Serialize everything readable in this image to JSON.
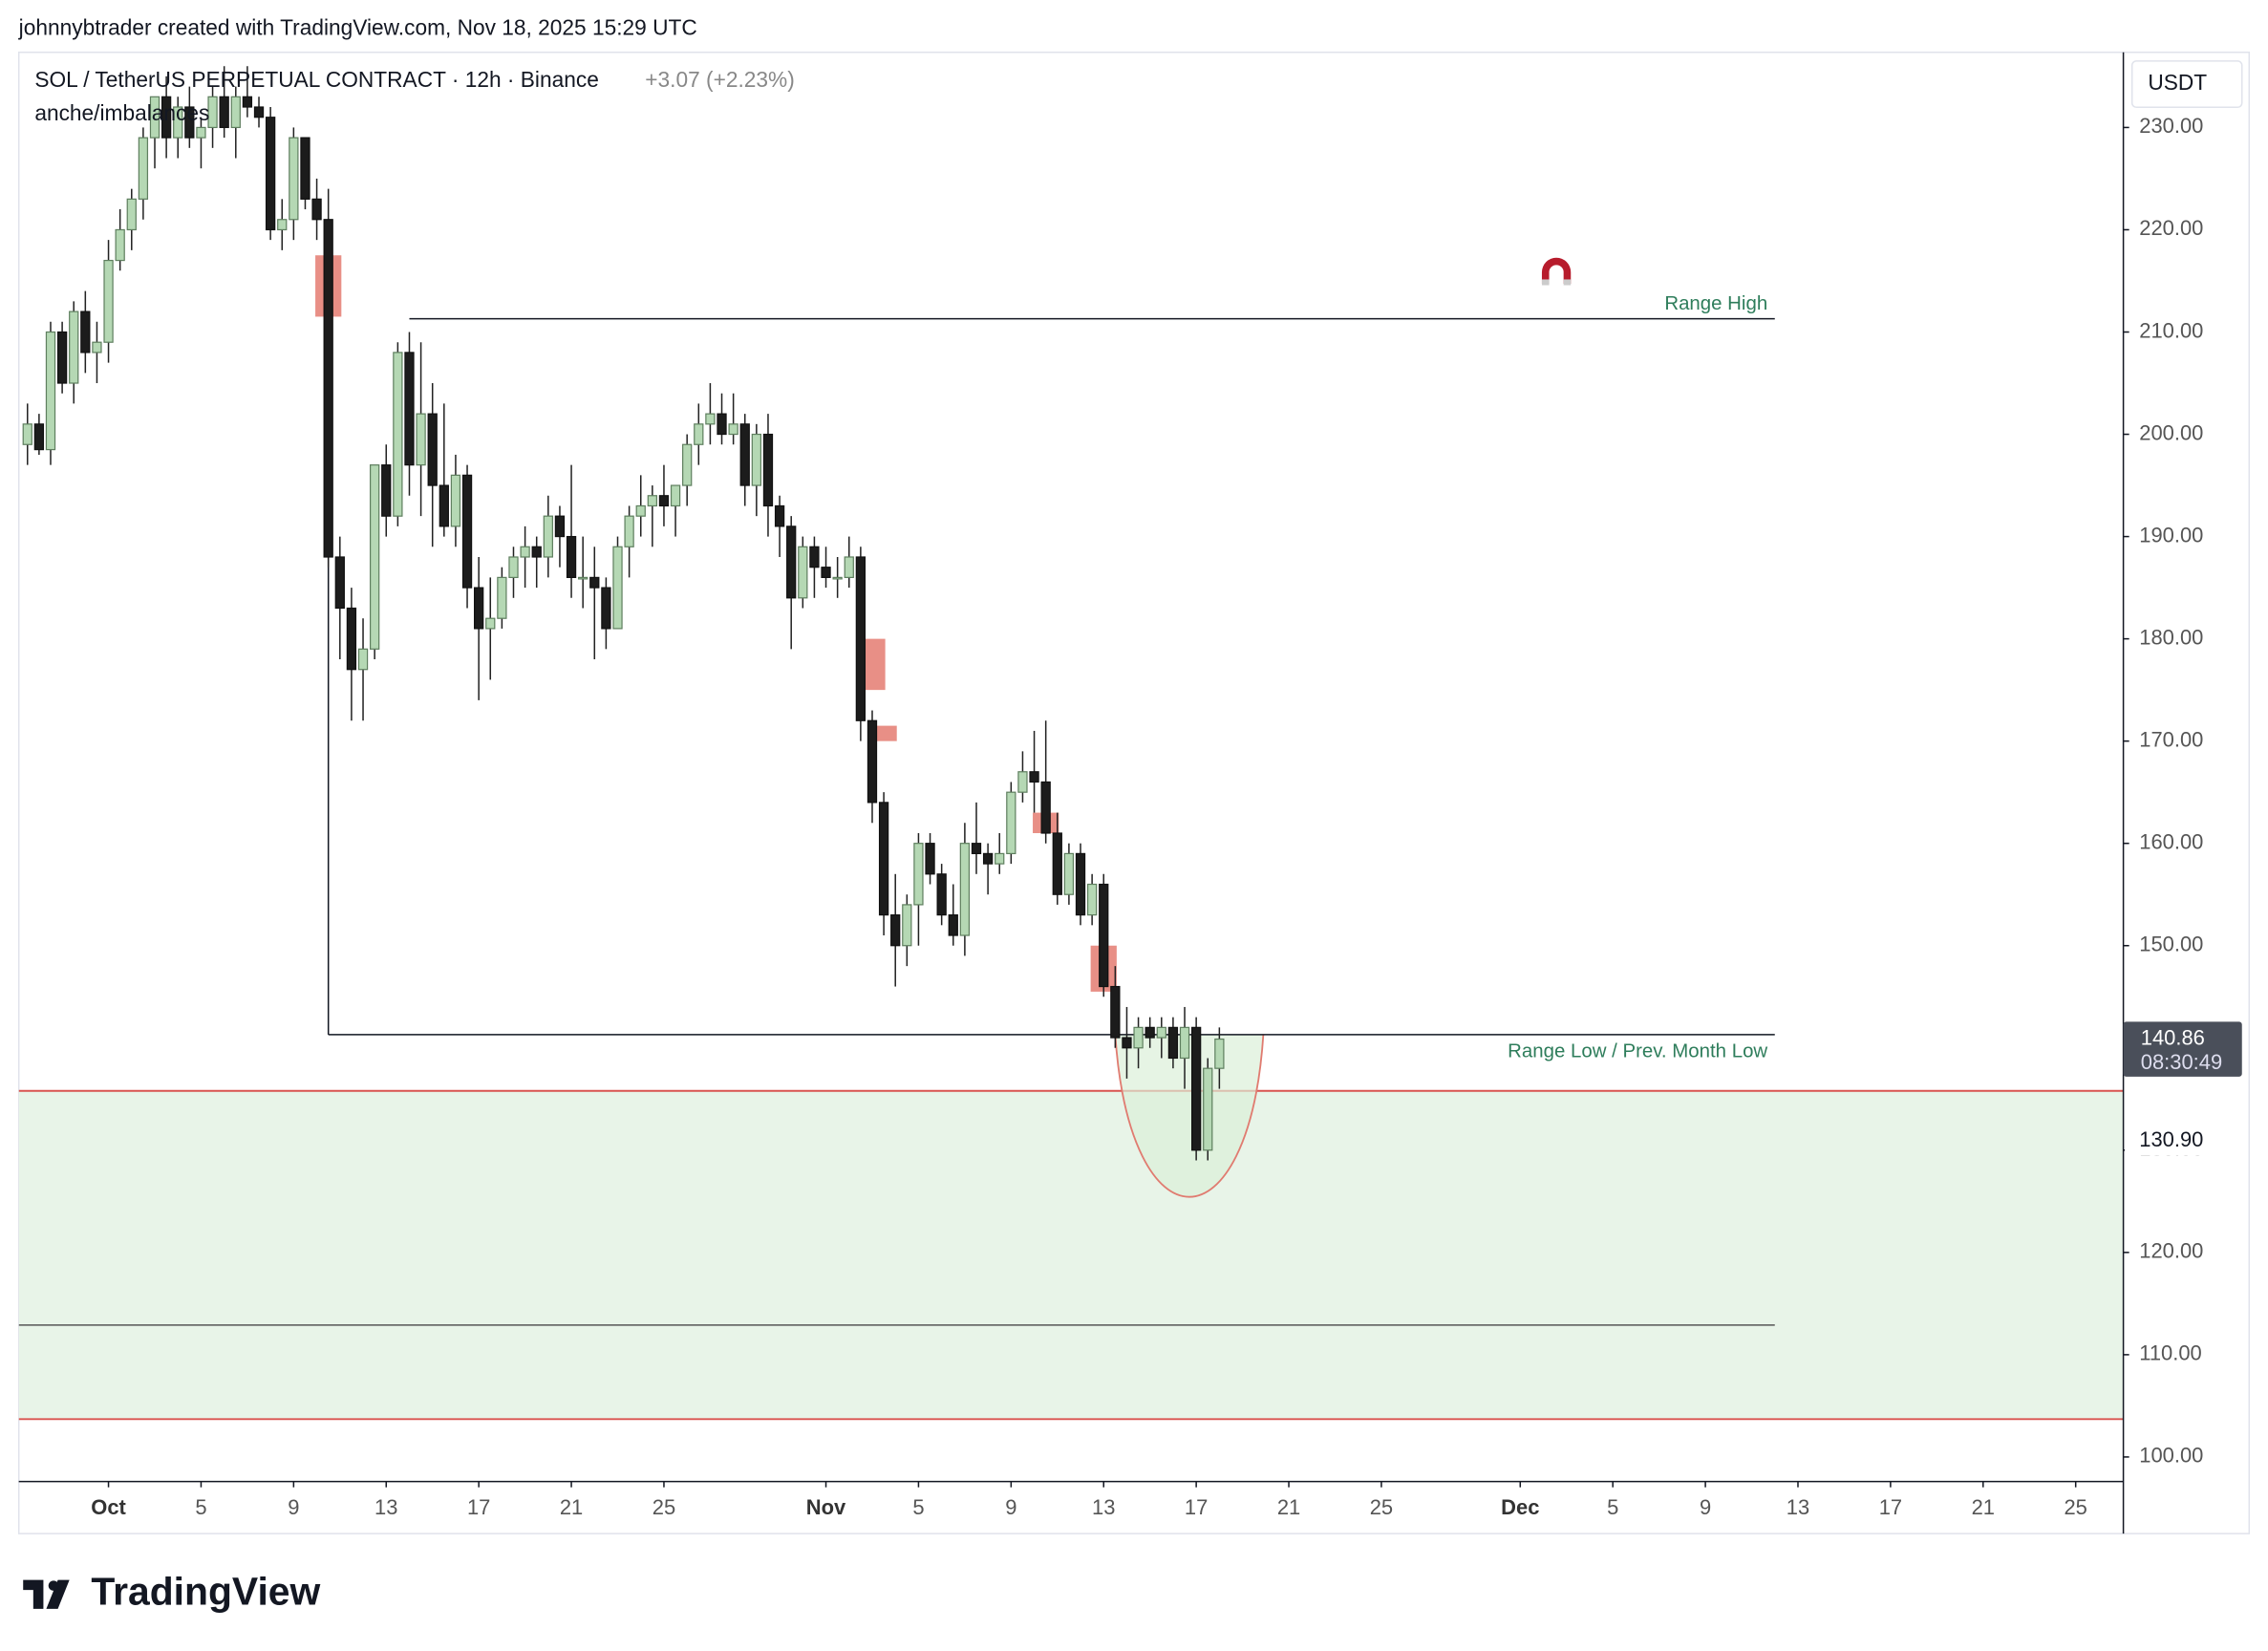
{
  "header": {
    "credit": "johnnybtrader created with TradingView.com, Nov 18, 2025 15:29 UTC",
    "logo": "TradingView"
  },
  "chart_data": {
    "type": "candlestick",
    "title": "SOL / TetherUS PERPETUAL CONTRACT · 12h · Binance",
    "change": "+3.07 (+2.23%)",
    "indicator": "anche/imbalances",
    "currency": "USDT",
    "x": [
      -3.5,
      -3,
      -2.5,
      -2,
      -1.5,
      -1,
      -0.5,
      0,
      0.5,
      1,
      1.5,
      2,
      2.5,
      3,
      3.5,
      4,
      4.5,
      5,
      5.5,
      6,
      6.5,
      7,
      7.5,
      8,
      8.5,
      9,
      9.5,
      10,
      10.5,
      11,
      11.5,
      12,
      12.5,
      13,
      13.5,
      14,
      14.5,
      15,
      15.5,
      16,
      16.5,
      17,
      17.5,
      18,
      18.5,
      19,
      19.5,
      20,
      20.5,
      21,
      21.5,
      22,
      22.5,
      23,
      23.5,
      24,
      24.5,
      25,
      25.5,
      26,
      26.5,
      27,
      27.5,
      28,
      28.5,
      29,
      29.5,
      30,
      30.5,
      31,
      31.5,
      32,
      32.5,
      33,
      33.5,
      34,
      34.5,
      35,
      35.5,
      36,
      36.5,
      37,
      37.5,
      38,
      38.5,
      39,
      39.5,
      40,
      40.5,
      41,
      41.5,
      42,
      42.5,
      43,
      43.5,
      44,
      44.5,
      45,
      45.5,
      46,
      46.5,
      47,
      47.5,
      48
    ],
    "open": [
      199,
      201,
      198.5,
      210,
      205,
      212,
      208,
      209,
      217,
      220,
      223,
      229,
      233,
      229,
      232,
      229,
      230,
      233,
      230,
      233,
      232,
      231,
      220,
      221,
      229,
      223,
      221,
      188,
      183,
      177,
      179,
      197,
      192,
      208,
      197,
      202,
      195,
      191,
      196,
      185,
      181,
      182,
      186,
      188,
      189,
      188,
      192,
      190,
      186,
      186,
      185,
      181,
      189,
      192,
      193,
      194,
      193,
      195,
      199,
      201,
      202,
      200,
      201,
      195,
      200,
      193,
      191,
      184,
      189,
      187,
      186,
      186,
      188,
      172,
      164,
      153,
      150,
      154,
      160,
      157,
      153,
      151,
      160,
      159,
      158,
      159,
      165,
      167,
      166,
      161,
      155,
      159,
      153,
      156,
      146,
      141,
      140,
      142,
      141,
      142,
      139,
      142,
      130,
      138
    ],
    "high": [
      203,
      202,
      211,
      211,
      213,
      214,
      211,
      219,
      222,
      224,
      230,
      233,
      235,
      233,
      234,
      231,
      234,
      236,
      234,
      236,
      233,
      232,
      223,
      230,
      229,
      225,
      224,
      190,
      185,
      182,
      197,
      199,
      209,
      210,
      209,
      205,
      203,
      198,
      197,
      188,
      186,
      187,
      189,
      191,
      190,
      194,
      193,
      197,
      190,
      189,
      186,
      190,
      193,
      196,
      195,
      197,
      195,
      200,
      203,
      205,
      204,
      204,
      202,
      201,
      202,
      194,
      192,
      190,
      190,
      189,
      188,
      190,
      189,
      173,
      165,
      157,
      155,
      161,
      161,
      158,
      156,
      162,
      164,
      160,
      161,
      166,
      169,
      171,
      172,
      163,
      160,
      160,
      157,
      157,
      148,
      144,
      143,
      143,
      143,
      143,
      144,
      143,
      139,
      142
    ],
    "low": [
      197,
      198,
      197,
      204,
      203,
      206,
      205,
      207,
      216,
      218,
      221,
      226,
      227,
      227,
      228,
      226,
      228,
      229,
      227,
      231,
      230,
      219,
      218,
      219,
      222,
      219,
      187,
      178,
      172,
      172,
      178,
      190,
      191,
      194,
      192,
      189,
      190,
      189,
      183,
      174,
      176,
      181,
      184,
      185,
      185,
      186,
      187,
      184,
      183,
      178,
      179,
      181,
      186,
      190,
      189,
      191,
      190,
      193,
      197,
      199,
      199,
      199,
      193,
      192,
      190,
      188,
      179,
      183,
      184,
      185,
      184,
      185,
      170,
      162,
      151,
      146,
      148,
      150,
      156,
      152,
      150,
      149,
      157,
      155,
      157,
      158,
      164,
      163,
      160,
      154,
      154,
      152,
      152,
      145,
      140,
      137,
      138,
      140,
      139,
      138,
      136,
      129,
      129,
      136
    ],
    "close": [
      201,
      198.5,
      210,
      205,
      212,
      208,
      209,
      217,
      220,
      223,
      229,
      233,
      229,
      232,
      229,
      230,
      233,
      230,
      233,
      232,
      231,
      220,
      221,
      229,
      223,
      221,
      188,
      183,
      177,
      179,
      197,
      192,
      208,
      197,
      202,
      195,
      191,
      196,
      185,
      181,
      182,
      186,
      188,
      189,
      188,
      192,
      190,
      186,
      186,
      185,
      181,
      189,
      192,
      193,
      194,
      193,
      195,
      199,
      201,
      202,
      200,
      201,
      195,
      200,
      193,
      191,
      184,
      189,
      187,
      186,
      186,
      188,
      172,
      164,
      153,
      150,
      154,
      160,
      157,
      153,
      151,
      160,
      159,
      158,
      159,
      165,
      167,
      166,
      161,
      155,
      159,
      153,
      156,
      146,
      141,
      140,
      142,
      141,
      142,
      139,
      142,
      130,
      138,
      140.86
    ],
    "up_color": "#b5d8b4",
    "down_color": "#1c1c1c",
    "xlim": [
      -3.875,
      87.06
    ],
    "ylim": [
      97.6,
      237.35
    ],
    "xticks": [
      {
        "value": 0,
        "label": "Oct"
      },
      {
        "value": 4,
        "label": "5"
      },
      {
        "value": 8,
        "label": "9"
      },
      {
        "value": 12,
        "label": "13"
      },
      {
        "value": 16,
        "label": "17"
      },
      {
        "value": 20,
        "label": "21"
      },
      {
        "value": 24,
        "label": "25"
      },
      {
        "value": 31,
        "label": "Nov"
      },
      {
        "value": 35,
        "label": "5"
      },
      {
        "value": 39,
        "label": "9"
      },
      {
        "value": 43,
        "label": "13"
      },
      {
        "value": 47,
        "label": "17"
      },
      {
        "value": 51,
        "label": "21"
      },
      {
        "value": 55,
        "label": "25"
      },
      {
        "value": 61,
        "label": "Dec"
      },
      {
        "value": 65,
        "label": "5"
      },
      {
        "value": 69,
        "label": "9"
      },
      {
        "value": 73,
        "label": "13"
      },
      {
        "value": 77,
        "label": "17"
      },
      {
        "value": 81,
        "label": "21"
      },
      {
        "value": 85,
        "label": "25"
      }
    ],
    "yticks": [
      {
        "value": 100,
        "label": "100.00"
      },
      {
        "value": 110,
        "label": "110.00"
      },
      {
        "value": 120,
        "label": "120.00"
      },
      {
        "value": 130,
        "label": "130.00"
      },
      {
        "value": 140,
        "label": "140.00"
      },
      {
        "value": 150,
        "label": "150.00"
      },
      {
        "value": 160,
        "label": "160.00"
      },
      {
        "value": 170,
        "label": "170.00"
      },
      {
        "value": 180,
        "label": "180.00"
      },
      {
        "value": 190,
        "label": "190.00"
      },
      {
        "value": 200,
        "label": "200.00"
      },
      {
        "value": 210,
        "label": "210.00"
      },
      {
        "value": 220,
        "label": "220.00"
      },
      {
        "value": 230,
        "label": "230.00"
      }
    ],
    "range_high": {
      "label": "Range High",
      "value": 211.3,
      "x": [
        13,
        72
      ]
    },
    "range_low": {
      "label": "Range Low / Prev. Month Low",
      "value": 141.3,
      "x": [
        9.5,
        72
      ]
    },
    "zone": {
      "top": 135.8,
      "bottom": 103.7,
      "color": "#e8f4e8",
      "edge_color": "#d9534f"
    },
    "mid_line": {
      "value": 112.9,
      "x_end": 72
    },
    "curve": {
      "x": [
        43.5,
        49.9
      ],
      "bottom": 125.8,
      "top": 141.3,
      "color": "#e07b70"
    },
    "imbalances": [
      {
        "x": 9.5,
        "top": 217.5,
        "bottom": 211.5
      },
      {
        "x": 33,
        "top": 180,
        "bottom": 175
      },
      {
        "x": 33.5,
        "top": 171.5,
        "bottom": 170
      },
      {
        "x": 40.5,
        "top": 163,
        "bottom": 161
      },
      {
        "x": 43,
        "top": 150,
        "bottom": 145.5
      }
    ],
    "last_price": {
      "value": 140.86,
      "countdown": "08:30:49"
    },
    "marked_level": {
      "value": 130.9,
      "label": "130.90"
    }
  }
}
